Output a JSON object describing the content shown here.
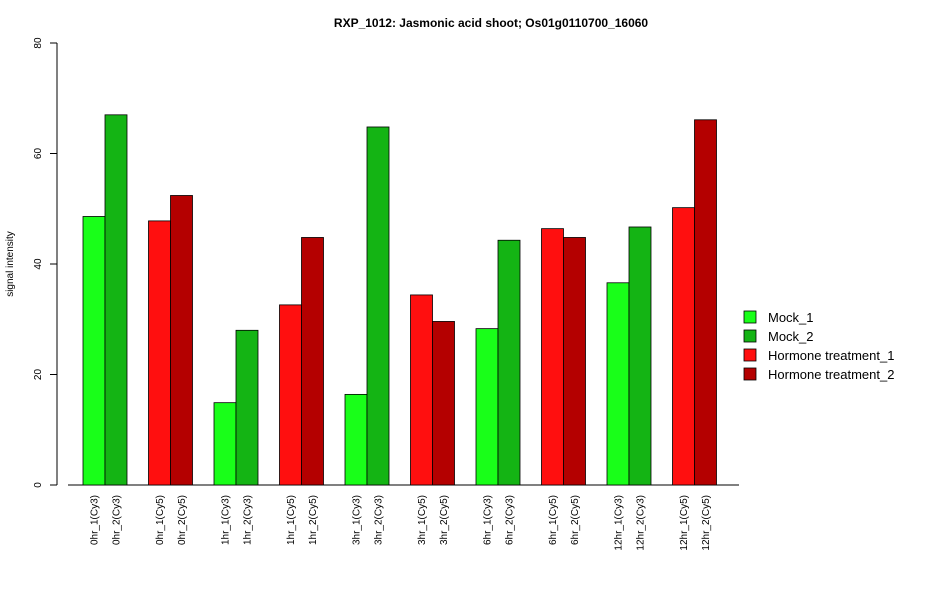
{
  "chart_data": {
    "type": "bar",
    "title": "RXP_1012: Jasmonic acid shoot; Os01g0110700_16060",
    "xlabel": "",
    "ylabel": "signal intensity",
    "ylim": [
      0,
      80
    ],
    "yticks": [
      0,
      20,
      40,
      60,
      80
    ],
    "grid": false,
    "legend_position": "right",
    "series": [
      {
        "name": "Mock_1",
        "color": "#19ff19"
      },
      {
        "name": "Mock_2",
        "color": "#14b414"
      },
      {
        "name": "Hormone treatment_1",
        "color": "#ff0f0f"
      },
      {
        "name": "Hormone treatment_2",
        "color": "#b40000"
      }
    ],
    "bars": [
      {
        "label": "0hr_1(Cy3)",
        "value": 48.6,
        "series": 0
      },
      {
        "label": "0hr_2(Cy3)",
        "value": 67.0,
        "series": 1
      },
      {
        "label": "0hr_1(Cy5)",
        "value": 47.8,
        "series": 2
      },
      {
        "label": "0hr_2(Cy5)",
        "value": 52.4,
        "series": 3
      },
      {
        "label": "1hr_1(Cy3)",
        "value": 14.9,
        "series": 0
      },
      {
        "label": "1hr_2(Cy3)",
        "value": 28.0,
        "series": 1
      },
      {
        "label": "1hr_1(Cy5)",
        "value": 32.6,
        "series": 2
      },
      {
        "label": "1hr_2(Cy5)",
        "value": 44.8,
        "series": 3
      },
      {
        "label": "3hr_1(Cy3)",
        "value": 16.4,
        "series": 0
      },
      {
        "label": "3hr_2(Cy3)",
        "value": 64.8,
        "series": 1
      },
      {
        "label": "3hr_1(Cy5)",
        "value": 34.4,
        "series": 2
      },
      {
        "label": "3hr_2(Cy5)",
        "value": 29.6,
        "series": 3
      },
      {
        "label": "6hr_1(Cy3)",
        "value": 28.3,
        "series": 0
      },
      {
        "label": "6hr_2(Cy3)",
        "value": 44.3,
        "series": 1
      },
      {
        "label": "6hr_1(Cy5)",
        "value": 46.4,
        "series": 2
      },
      {
        "label": "6hr_2(Cy5)",
        "value": 44.8,
        "series": 3
      },
      {
        "label": "12hr_1(Cy3)",
        "value": 36.6,
        "series": 0
      },
      {
        "label": "12hr_2(Cy3)",
        "value": 46.7,
        "series": 1
      },
      {
        "label": "12hr_1(Cy5)",
        "value": 50.2,
        "series": 2
      },
      {
        "label": "12hr_2(Cy5)",
        "value": 66.1,
        "series": 3
      }
    ]
  }
}
